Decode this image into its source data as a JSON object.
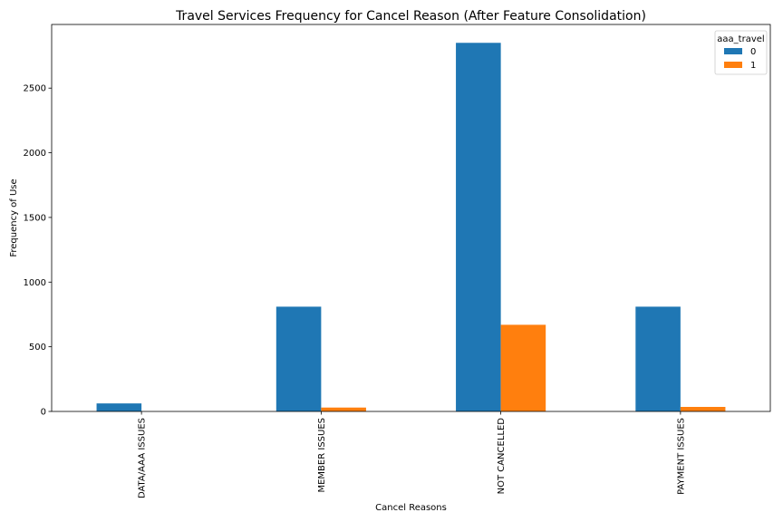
{
  "chart_data": {
    "type": "bar",
    "title": "Travel Services Frequency for Cancel Reason (After Feature Consolidation)",
    "xlabel": "Cancel Reasons",
    "ylabel": "Frequency of Use",
    "categories": [
      "DATA/AAA ISSUES",
      "MEMBER ISSUES",
      "NOT CANCELLED",
      "PAYMENT ISSUES"
    ],
    "series": [
      {
        "name": "0",
        "color": "#1f77b4",
        "values": [
          62,
          810,
          2850,
          810
        ]
      },
      {
        "name": "1",
        "color": "#ff7f0e",
        "values": [
          0,
          30,
          670,
          35
        ]
      }
    ],
    "ylim": [
      0,
      2992
    ],
    "yticks": [
      0,
      500,
      1000,
      1500,
      2000,
      2500
    ],
    "grid": false,
    "legend": {
      "title": "aaa_travel",
      "placement": "top-right"
    }
  }
}
